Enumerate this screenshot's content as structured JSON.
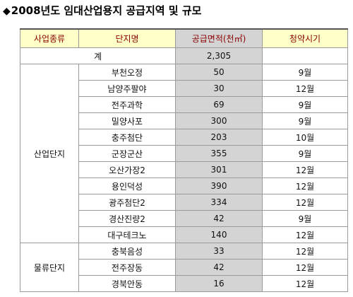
{
  "title": "2008년도 임대산업용지 공급지역 및 규모",
  "headers": [
    "사업종류",
    "단지명",
    "공급면적(천㎡)",
    "청약시기"
  ],
  "total": {
    "label": "계",
    "area": "2,305"
  },
  "groups": [
    {
      "type": "산업단지",
      "rows": [
        {
          "name": "부천오정",
          "area": "50",
          "date": "9월"
        },
        {
          "name": "남양주팔야",
          "area": "30",
          "date": "12월"
        },
        {
          "name": "전주과학",
          "area": "69",
          "date": "9월"
        },
        {
          "name": "밀양사포",
          "area": "300",
          "date": "9월"
        },
        {
          "name": "충주첨단",
          "area": "203",
          "date": "10월"
        },
        {
          "name": "군장군산",
          "area": "355",
          "date": "9월"
        },
        {
          "name": "오산가장2",
          "area": "301",
          "date": "12월"
        },
        {
          "name": "용인덕성",
          "area": "390",
          "date": "12월"
        },
        {
          "name": "광주첨단2",
          "area": "334",
          "date": "12월"
        },
        {
          "name": "경산진량2",
          "area": "42",
          "date": "9월"
        },
        {
          "name": "대구테크노",
          "area": "140",
          "date": "12월"
        }
      ]
    },
    {
      "type": "물류단지",
      "rows": [
        {
          "name": "충북음성",
          "area": "33",
          "date": "12월"
        },
        {
          "name": "전주장동",
          "area": "42",
          "date": "12월"
        },
        {
          "name": "경북안동",
          "area": "16",
          "date": "12월"
        }
      ]
    }
  ]
}
